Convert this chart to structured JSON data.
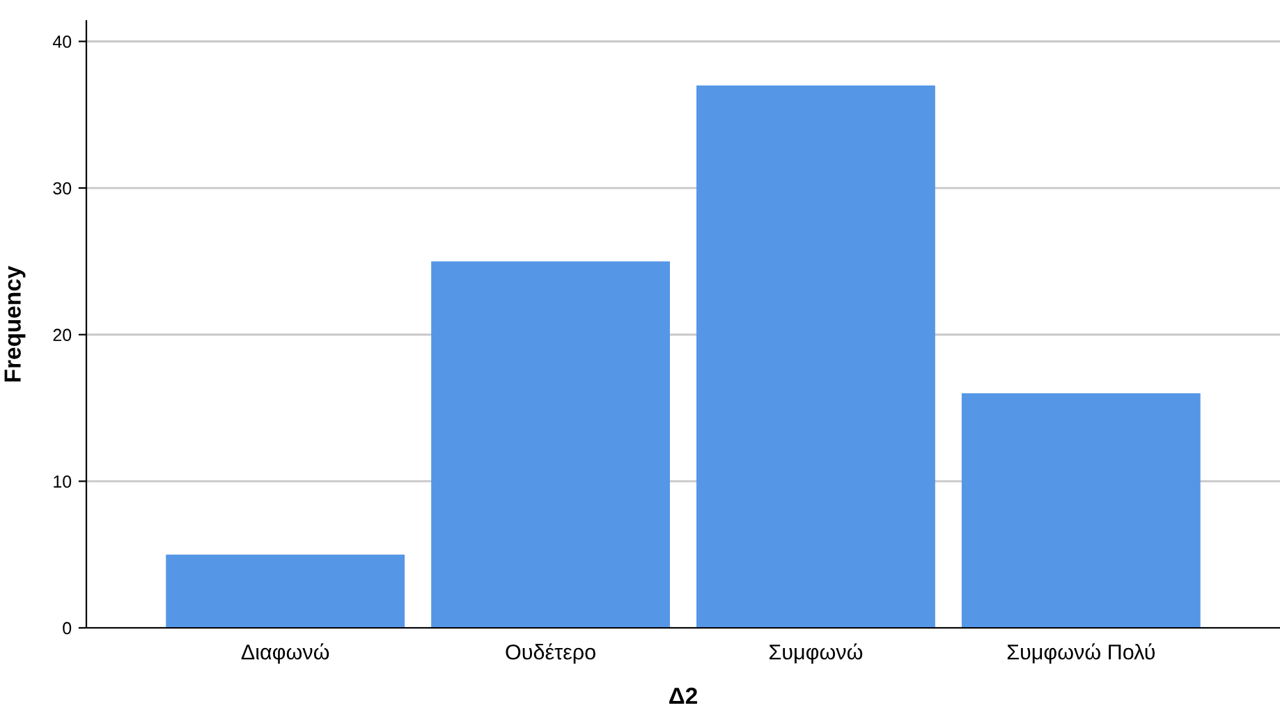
{
  "chart_data": {
    "type": "bar",
    "xlabel": "Δ2",
    "ylabel": "Frequency",
    "categories": [
      "Διαφωνώ",
      "Ουδέτερο",
      "Συμφωνώ",
      "Συμφωνώ Πολύ"
    ],
    "values": [
      5,
      25,
      37,
      16
    ],
    "color": "#5596e6",
    "ylim": [
      0,
      41.4
    ],
    "yticks": [
      0,
      10,
      20,
      30,
      40
    ],
    "grid": "y"
  }
}
